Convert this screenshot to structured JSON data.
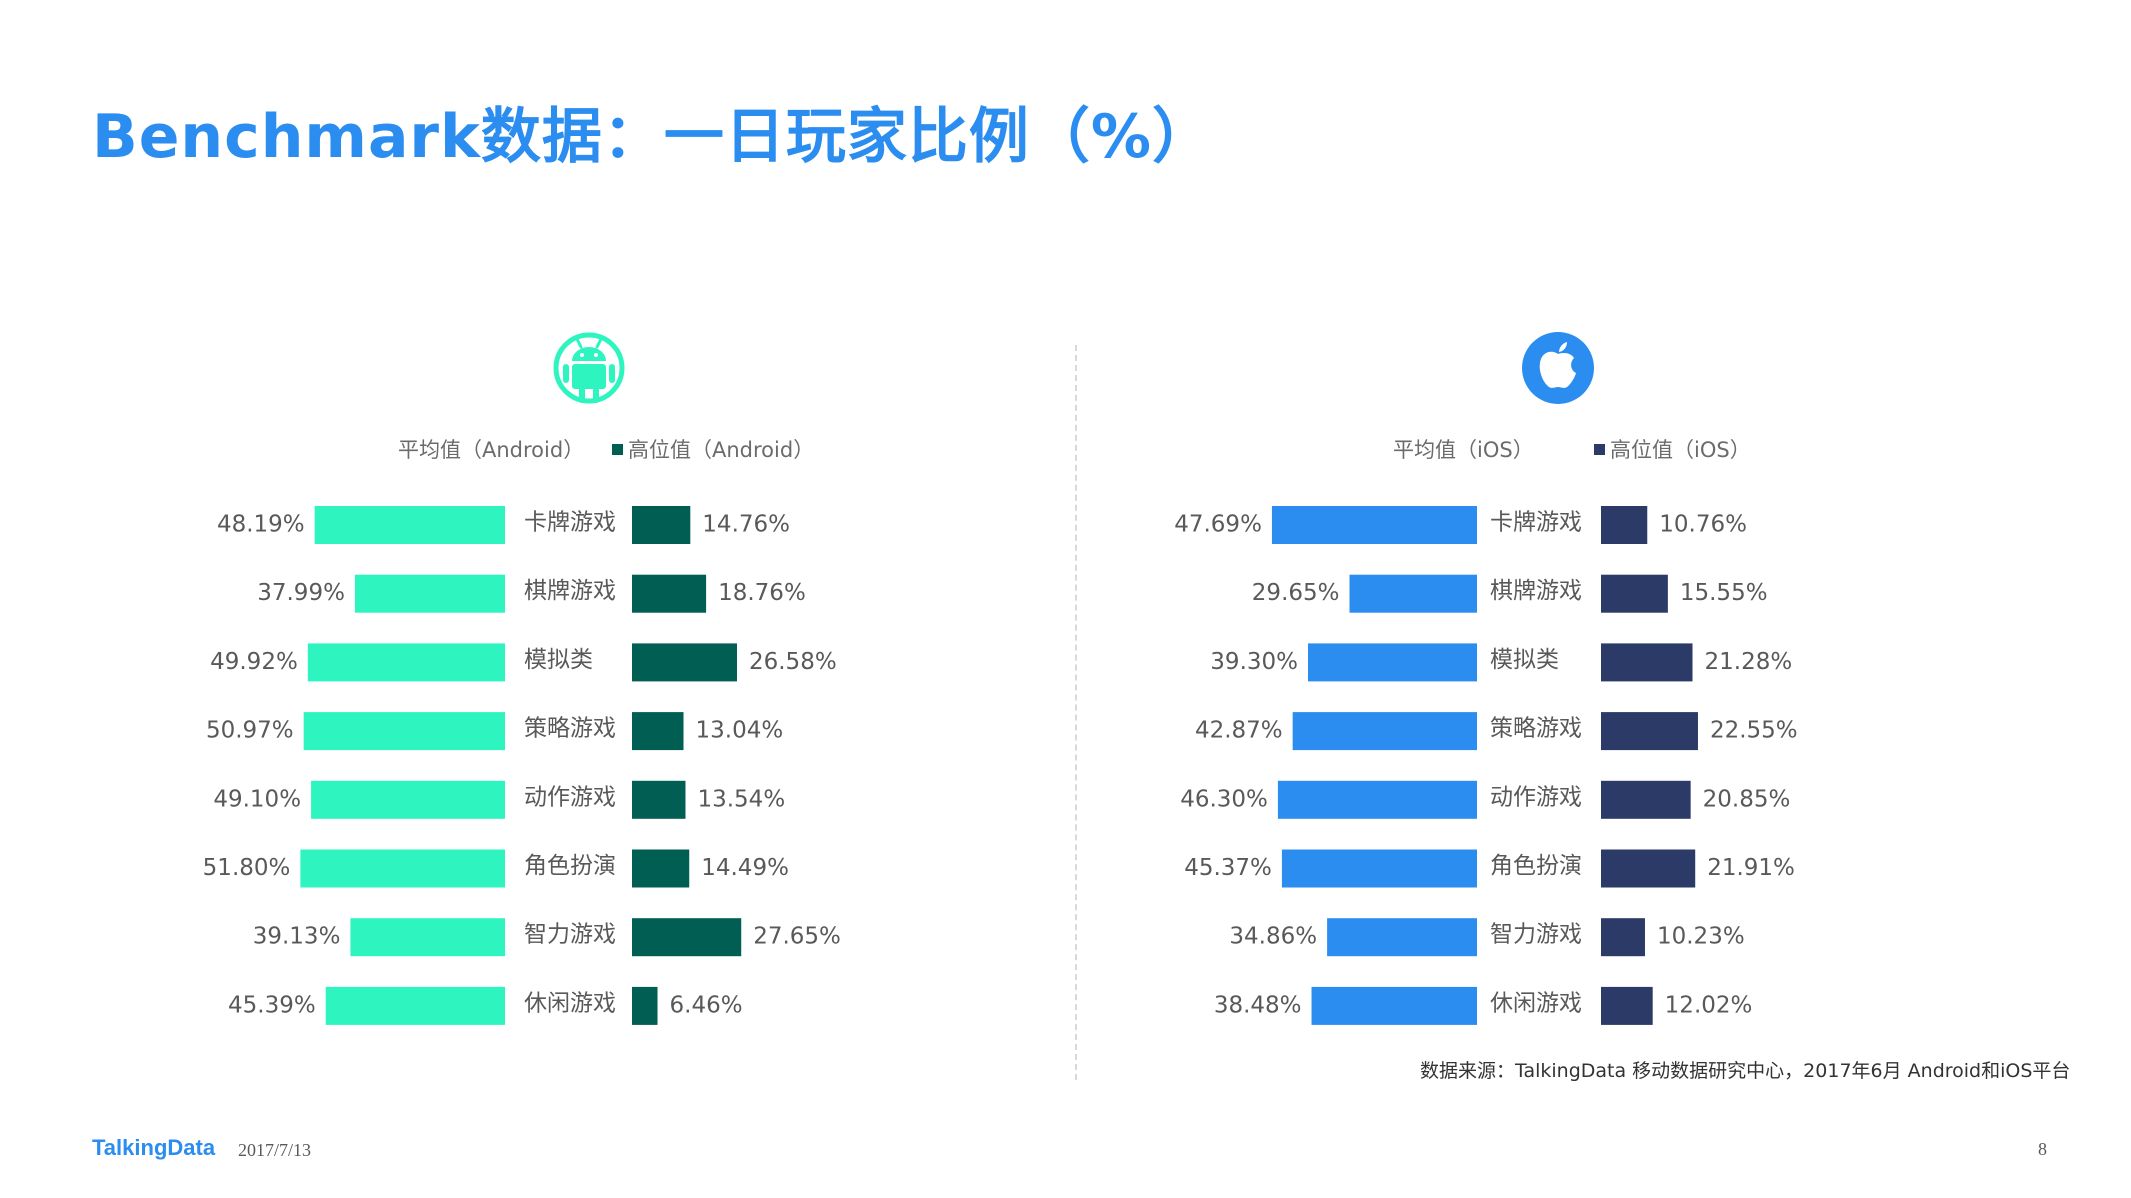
{
  "title": "Benchmark数据：一日玩家比例（%）",
  "source": "数据来源：TalkingData 移动数据研究中心，2017年6月 Android和iOS平台",
  "footer": {
    "logo": "TalkingData",
    "date": "2017/7/13",
    "page": "8"
  },
  "colors": {
    "android_avg": "#2ef5c0",
    "android_high": "#005e52",
    "ios_avg": "#2b8def",
    "ios_high": "#2b3a66",
    "title": "#2b8def"
  },
  "icons": {
    "android": "android-logo-icon",
    "ios": "apple-logo-icon"
  },
  "chart_data": [
    {
      "type": "bar",
      "orientation": "horizontal-mirrored",
      "platform": "android",
      "categories": [
        "卡牌游戏",
        "棋牌游戏",
        "模拟类",
        "策略游戏",
        "动作游戏",
        "角色扮演",
        "智力游戏",
        "休闲游戏"
      ],
      "series": [
        {
          "name": "平均值（Android）",
          "values": [
            48.19,
            37.99,
            49.92,
            50.97,
            49.1,
            51.8,
            39.13,
            45.39
          ]
        },
        {
          "name": "高位值（Android）",
          "values": [
            14.76,
            18.76,
            26.58,
            13.04,
            13.54,
            14.49,
            27.65,
            6.46
          ]
        }
      ],
      "unit": "%",
      "legend": "top"
    },
    {
      "type": "bar",
      "orientation": "horizontal-mirrored",
      "platform": "ios",
      "categories": [
        "卡牌游戏",
        "棋牌游戏",
        "模拟类",
        "策略游戏",
        "动作游戏",
        "角色扮演",
        "智力游戏",
        "休闲游戏"
      ],
      "series": [
        {
          "name": "平均值（iOS）",
          "values": [
            47.69,
            29.65,
            39.3,
            42.87,
            46.3,
            45.37,
            34.86,
            38.48
          ]
        },
        {
          "name": "高位值（iOS）",
          "values": [
            10.76,
            15.55,
            21.28,
            22.55,
            20.85,
            21.91,
            10.23,
            12.02
          ]
        }
      ],
      "unit": "%",
      "legend": "top"
    }
  ]
}
